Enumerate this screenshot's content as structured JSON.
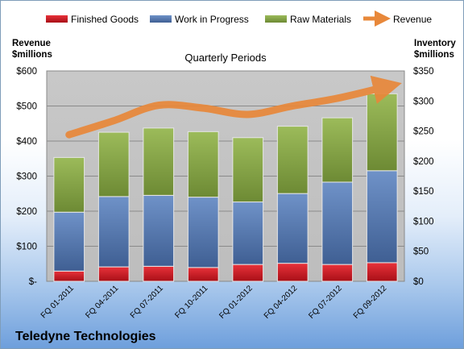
{
  "chart_data": {
    "type": "bar",
    "title": "Quarterly Periods",
    "company": "Teledyne Technologies",
    "left_axis_label": [
      "Revenue",
      "$millions"
    ],
    "right_axis_label": [
      "Inventory",
      "$millions"
    ],
    "categories": [
      "FQ 01-2011",
      "FQ 04-2011",
      "FQ 07-2011",
      "FQ 10-2011",
      "FQ 01-2012",
      "FQ 04-2012",
      "FQ 07-2012",
      "FQ 09-2012"
    ],
    "left_ticks": [
      "$-",
      "$100",
      "$200",
      "$300",
      "$400",
      "$500",
      "$600"
    ],
    "right_ticks": [
      "$0",
      "$50",
      "$100",
      "$150",
      "$200",
      "$250",
      "$300",
      "$350"
    ],
    "ylim_left": [
      0,
      600
    ],
    "ylim_right": [
      0,
      350
    ],
    "stacked": true,
    "grid": true,
    "legend_position": "top",
    "series": [
      {
        "name": "Finished Goods",
        "axis": "right",
        "color": "#c0141c",
        "values": [
          17,
          24,
          25,
          23,
          28,
          30,
          28,
          31
        ]
      },
      {
        "name": "Work in Progress",
        "axis": "right",
        "color": "#4f73a8",
        "values": [
          98,
          117,
          118,
          117,
          104,
          116,
          137,
          153
        ]
      },
      {
        "name": "Raw Materials",
        "axis": "right",
        "color": "#7c9b3f",
        "values": [
          91,
          107,
          112,
          109,
          107,
          112,
          107,
          128
        ]
      }
    ],
    "line_series": {
      "name": "Revenue",
      "axis": "left",
      "color": "#e8883a",
      "values": [
        418,
        458,
        502,
        494,
        476,
        500,
        522,
        552
      ]
    }
  }
}
